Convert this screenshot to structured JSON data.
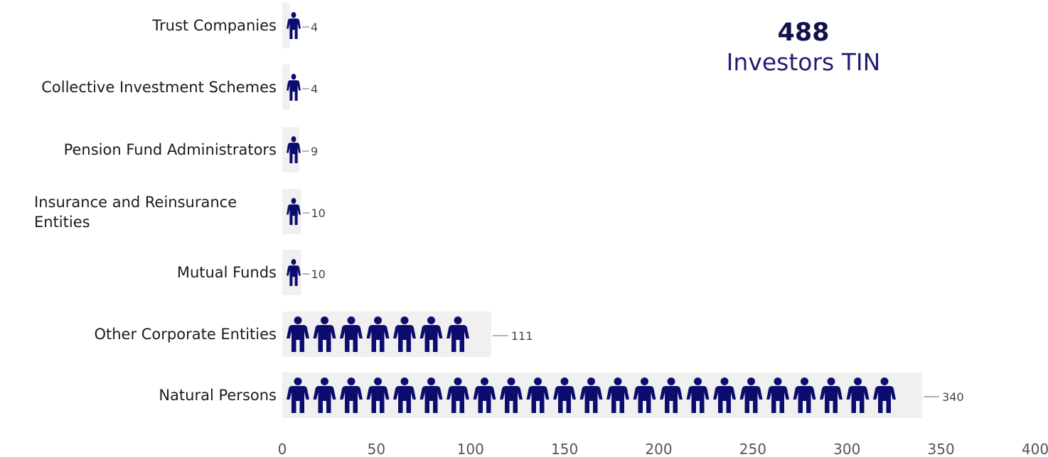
{
  "chart_data": {
    "type": "bar",
    "orientation": "horizontal",
    "categories": [
      "Trust Companies",
      "Collective Investment Schemes",
      "Pension Fund Administrators",
      "Insurance and Reinsurance Entities",
      "Mutual Funds",
      "Other Corporate Entities",
      "Natural Persons"
    ],
    "values": [
      4,
      4,
      9,
      10,
      10,
      111,
      340
    ],
    "xlim": [
      0,
      400
    ],
    "xticks": [
      0,
      50,
      100,
      150,
      200,
      250,
      300,
      350,
      400
    ],
    "bar_color": "#f0f0f0",
    "icon": "person-icon",
    "icon_color": "#0c0c6e",
    "grid": false
  },
  "kpi": {
    "value": "488",
    "label": "Investors TIN",
    "color": "#12124a"
  }
}
